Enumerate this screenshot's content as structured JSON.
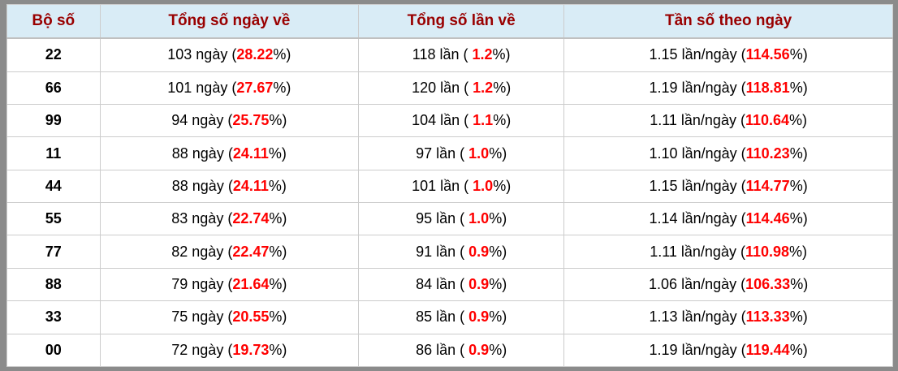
{
  "colors": {
    "frame": "#8b8b8b",
    "header_bg": "#d9ecf6",
    "header_text": "#990000",
    "highlight": "#ff0000",
    "cell_border": "#cccccc"
  },
  "table": {
    "headers": [
      {
        "label": "Bộ số"
      },
      {
        "label": "Tổng số ngày về"
      },
      {
        "label": "Tổng số lần về"
      },
      {
        "label": "Tần số theo ngày"
      }
    ],
    "units": {
      "days": "ngày",
      "times": "lần",
      "freq": "lần/ngày"
    },
    "rows": [
      {
        "pair": "22",
        "days": "103",
        "days_pct": "28.22",
        "times": "118",
        "times_pct": "1.2",
        "freq": "1.15",
        "freq_pct": "114.56"
      },
      {
        "pair": "66",
        "days": "101",
        "days_pct": "27.67",
        "times": "120",
        "times_pct": "1.2",
        "freq": "1.19",
        "freq_pct": "118.81"
      },
      {
        "pair": "99",
        "days": "94",
        "days_pct": "25.75",
        "times": "104",
        "times_pct": "1.1",
        "freq": "1.11",
        "freq_pct": "110.64"
      },
      {
        "pair": "11",
        "days": "88",
        "days_pct": "24.11",
        "times": "97",
        "times_pct": "1.0",
        "freq": "1.10",
        "freq_pct": "110.23"
      },
      {
        "pair": "44",
        "days": "88",
        "days_pct": "24.11",
        "times": "101",
        "times_pct": "1.0",
        "freq": "1.15",
        "freq_pct": "114.77"
      },
      {
        "pair": "55",
        "days": "83",
        "days_pct": "22.74",
        "times": "95",
        "times_pct": "1.0",
        "freq": "1.14",
        "freq_pct": "114.46"
      },
      {
        "pair": "77",
        "days": "82",
        "days_pct": "22.47",
        "times": "91",
        "times_pct": "0.9",
        "freq": "1.11",
        "freq_pct": "110.98"
      },
      {
        "pair": "88",
        "days": "79",
        "days_pct": "21.64",
        "times": "84",
        "times_pct": "0.9",
        "freq": "1.06",
        "freq_pct": "106.33"
      },
      {
        "pair": "33",
        "days": "75",
        "days_pct": "20.55",
        "times": "85",
        "times_pct": "0.9",
        "freq": "1.13",
        "freq_pct": "113.33"
      },
      {
        "pair": "00",
        "days": "72",
        "days_pct": "19.73",
        "times": "86",
        "times_pct": "0.9",
        "freq": "1.19",
        "freq_pct": "119.44"
      }
    ]
  }
}
